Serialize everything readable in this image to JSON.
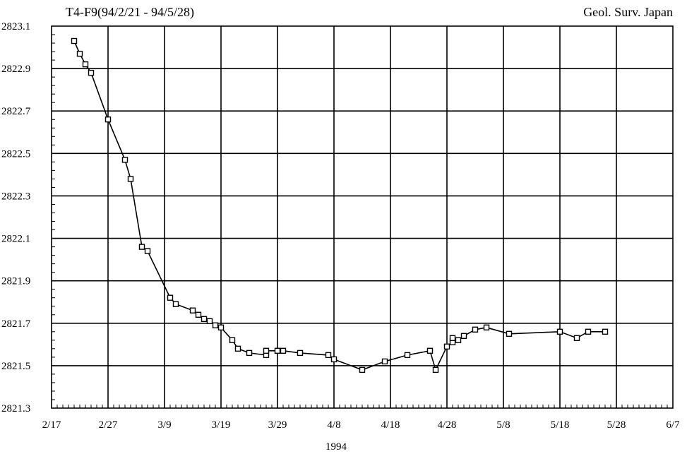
{
  "chart_data": {
    "type": "line",
    "title": "T4-F9(94/2/21 - 94/5/28)",
    "credit": "Geol. Surv. Japan",
    "xlabel": "1994",
    "ylabel": "",
    "x_ticks": [
      "2/17",
      "2/27",
      "3/9",
      "3/19",
      "3/29",
      "4/8",
      "4/18",
      "4/28",
      "5/8",
      "5/18",
      "5/28",
      "6/7"
    ],
    "y_ticks": [
      "2823.1",
      "2822.9",
      "2822.7",
      "2822.5",
      "2822.3",
      "2822.1",
      "2821.9",
      "2821.7",
      "2821.5",
      "2821.3"
    ],
    "ylim": [
      2821.3,
      2823.1
    ],
    "xlim": [
      "1994-02-17",
      "1994-06-07"
    ],
    "grid": true,
    "marker": "open-square",
    "series": [
      {
        "x": [
          "1994-02-21",
          "1994-02-22",
          "1994-02-23",
          "1994-02-24",
          "1994-02-27",
          "1994-03-02",
          "1994-03-03",
          "1994-03-05",
          "1994-03-06",
          "1994-03-10",
          "1994-03-11",
          "1994-03-14",
          "1994-03-15",
          "1994-03-16",
          "1994-03-17",
          "1994-03-18",
          "1994-03-19",
          "1994-03-21",
          "1994-03-22",
          "1994-03-24",
          "1994-03-27",
          "1994-03-27",
          "1994-03-29",
          "1994-03-30",
          "1994-04-02",
          "1994-04-07",
          "1994-04-08",
          "1994-04-13",
          "1994-04-17",
          "1994-04-21",
          "1994-04-25",
          "1994-04-26",
          "1994-04-28",
          "1994-04-29",
          "1994-04-29",
          "1994-04-30",
          "1994-05-01",
          "1994-05-03",
          "1994-05-05",
          "1994-05-09",
          "1994-05-18",
          "1994-05-21",
          "1994-05-23",
          "1994-05-26"
        ],
        "y": [
          2823.03,
          2822.97,
          2822.92,
          2822.88,
          2822.66,
          2822.47,
          2822.38,
          2822.06,
          2822.04,
          2821.82,
          2821.79,
          2821.76,
          2821.74,
          2821.72,
          2821.71,
          2821.69,
          2821.68,
          2821.62,
          2821.58,
          2821.56,
          2821.55,
          2821.57,
          2821.57,
          2821.57,
          2821.56,
          2821.55,
          2821.53,
          2821.48,
          2821.52,
          2821.55,
          2821.57,
          2821.48,
          2821.59,
          2821.61,
          2821.63,
          2821.62,
          2821.64,
          2821.67,
          2821.68,
          2821.65,
          2821.66,
          2821.63,
          2821.66,
          2821.66
        ]
      }
    ]
  }
}
